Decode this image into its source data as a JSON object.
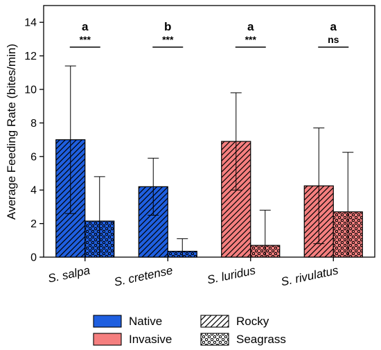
{
  "chart_data": {
    "type": "bar",
    "title": "",
    "xlabel": "",
    "ylabel": "Average Feeding Rate (bites/min)",
    "ylim": [
      0,
      15
    ],
    "yticks": [
      0,
      2,
      4,
      6,
      8,
      10,
      12,
      14
    ],
    "grid": false,
    "categories": [
      "S. salpa",
      "S. cretense",
      "S. luridus",
      "S. rivulatus"
    ],
    "origin": [
      "Native",
      "Native",
      "Invasive",
      "Invasive"
    ],
    "series": [
      {
        "name": "Rocky",
        "values": [
          7.0,
          4.2,
          6.9,
          4.25
        ],
        "err": [
          4.4,
          1.7,
          2.9,
          3.45
        ]
      },
      {
        "name": "Seagrass",
        "values": [
          2.15,
          0.35,
          0.7,
          2.7
        ],
        "err": [
          2.65,
          0.75,
          2.1,
          3.55
        ]
      }
    ],
    "letters": [
      "a",
      "b",
      "a",
      "a"
    ],
    "significance": [
      "***",
      "***",
      "***",
      "ns"
    ],
    "legend": {
      "placement": "bottom",
      "origin": [
        {
          "label": "Native",
          "color": "#1f5fe0"
        },
        {
          "label": "Invasive",
          "color": "#f57f7f"
        }
      ],
      "habitat": [
        {
          "label": "Rocky",
          "pattern": "hatch"
        },
        {
          "label": "Seagrass",
          "pattern": "dots"
        }
      ]
    }
  }
}
